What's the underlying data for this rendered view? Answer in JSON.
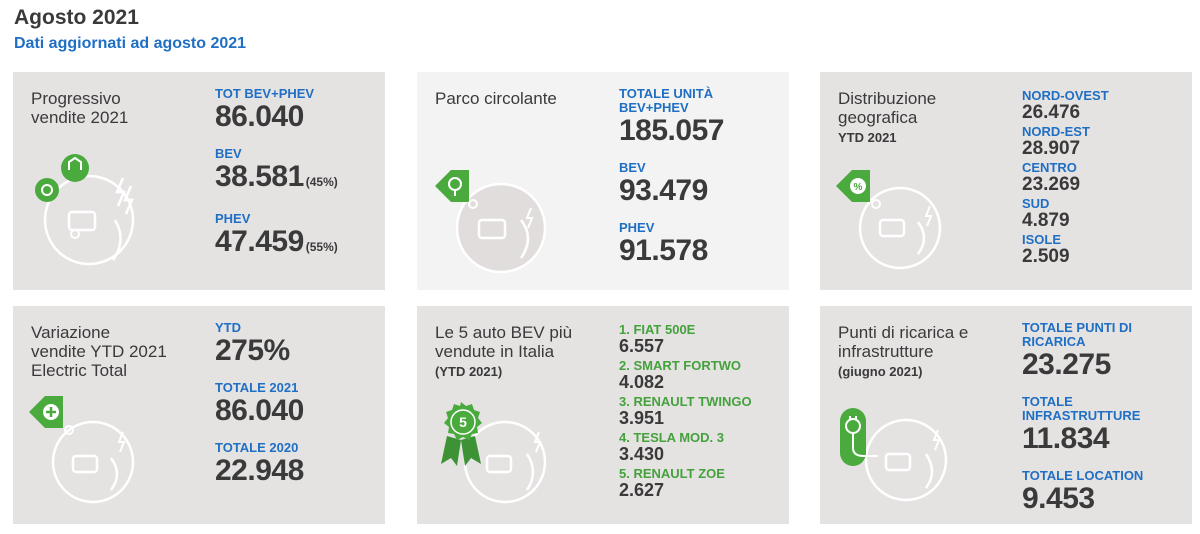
{
  "header": {
    "title": "Agosto 2021",
    "subtitle": "Dati aggiornati ad agosto 2021"
  },
  "colors": {
    "accent_blue": "#1f6fc5",
    "accent_green": "#44a23c",
    "card_bg": "#e5e2e2",
    "card_bg_light": "#f3f3f3",
    "text": "#3a3a3a"
  },
  "cards": {
    "progressivo": {
      "title_line1": "Progressivo",
      "title_line2": "vendite 2021",
      "icon": "green-car-gear-icon",
      "metrics": [
        {
          "label": "TOT BEV+PHEV",
          "value": "86.040",
          "pct": ""
        },
        {
          "label": "BEV",
          "value": "38.581",
          "pct": "(45%)"
        },
        {
          "label": "PHEV",
          "value": "47.459",
          "pct": "(55%)"
        }
      ]
    },
    "parco": {
      "title_line1": "Parco circolante",
      "icon": "location-tag-icon",
      "metrics": [
        {
          "label_line1": "TOTALE UNITÀ",
          "label_line2": "BEV+PHEV",
          "value": "185.057"
        },
        {
          "label": "BEV",
          "value": "93.479"
        },
        {
          "label": "PHEV",
          "value": "91.578"
        }
      ]
    },
    "distribuzione": {
      "title_line1": "Distribuzione",
      "title_line2": "geografica",
      "note": "YTD 2021",
      "icon": "percent-tag-icon",
      "regions": [
        {
          "label": "NORD-OVEST",
          "value": "26.476"
        },
        {
          "label": "NORD-EST",
          "value": "28.907"
        },
        {
          "label": "CENTRO",
          "value": "23.269"
        },
        {
          "label": "SUD",
          "value": "4.879"
        },
        {
          "label": "ISOLE",
          "value": "2.509"
        }
      ]
    },
    "variazione": {
      "title_line1": "Variazione",
      "title_line2": "vendite YTD 2021",
      "title_line3": "Electric Total",
      "icon": "plus-tag-icon",
      "metrics": [
        {
          "label": "YTD",
          "value": "275%"
        },
        {
          "label": "TOTALE 2021",
          "value": "86.040"
        },
        {
          "label": "TOTALE 2020",
          "value": "22.948"
        }
      ]
    },
    "top5": {
      "title_line1": "Le 5 auto BEV più",
      "title_line2": "vendute in Italia",
      "note": "(YTD 2021)",
      "icon": "award-ribbon-icon",
      "badge_number": "5",
      "ranking": [
        {
          "label": "1. FIAT 500E",
          "value": "6.557"
        },
        {
          "label": "2. SMART FORTWO",
          "value": "4.082"
        },
        {
          "label": "3. RENAULT TWINGO",
          "value": "3.951"
        },
        {
          "label": "4. TESLA MOD. 3",
          "value": "3.430"
        },
        {
          "label": "5. RENAULT ZOE",
          "value": "2.627"
        }
      ]
    },
    "punti": {
      "title_line1": "Punti di ricarica e",
      "title_line2": "infrastrutture",
      "note": "(giugno 2021)",
      "icon": "charging-plug-icon",
      "metrics": [
        {
          "label_line1": "TOTALE PUNTI DI",
          "label_line2": "RICARICA",
          "value": "23.275"
        },
        {
          "label_line1": "TOTALE",
          "label_line2": "INFRASTRUTTURE",
          "value": "11.834"
        },
        {
          "label": "TOTALE LOCATION",
          "value": "9.453"
        }
      ]
    }
  }
}
